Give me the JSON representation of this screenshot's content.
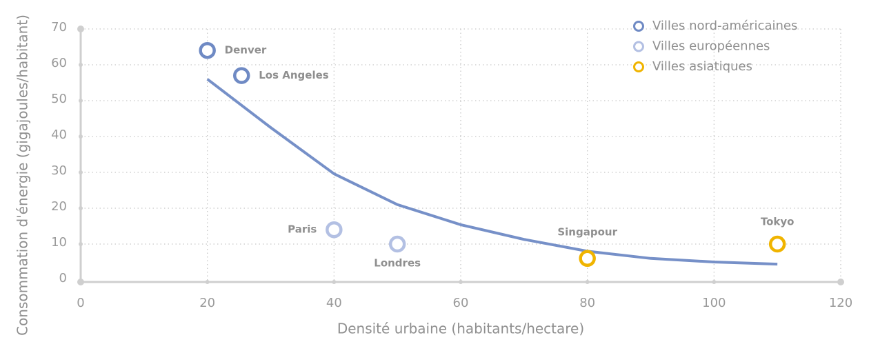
{
  "chart_data": {
    "type": "scatter",
    "xlabel": "Densité urbaine (habitants/hectare)",
    "ylabel": "Consommation d'énergie (gigajoules/habitant)",
    "xlim": [
      0,
      120
    ],
    "xticks": [
      0,
      20,
      40,
      60,
      80,
      100,
      120
    ],
    "ylim": [
      0,
      70
    ],
    "yticks": [
      0,
      10,
      20,
      30,
      40,
      50,
      60,
      70
    ],
    "grid": true,
    "legend": "upper right",
    "series": [
      {
        "name": "Villes nord-américaines",
        "color": "#6f8ac4",
        "x": [
          20,
          25.4
        ],
        "values": [
          64,
          57
        ],
        "labels": [
          "Denver",
          "Los Angeles"
        ]
      },
      {
        "name": "Villes européennes",
        "color": "#b3c0e3",
        "x": [
          40,
          50
        ],
        "values": [
          14,
          10
        ],
        "labels": [
          "Paris",
          "Londres"
        ]
      },
      {
        "name": "Villes asiatiques",
        "color": "#f0b400",
        "x": [
          80,
          110
        ],
        "values": [
          6,
          10
        ],
        "labels": [
          "Singapour",
          "Tokyo"
        ]
      }
    ],
    "trend": {
      "color": "#7690c8",
      "x": [
        20,
        30,
        40,
        50,
        60,
        70,
        80,
        90,
        100,
        110
      ],
      "values": [
        56,
        42.5,
        29.6,
        21,
        15.4,
        11.3,
        8,
        6,
        5,
        4.4
      ]
    }
  }
}
